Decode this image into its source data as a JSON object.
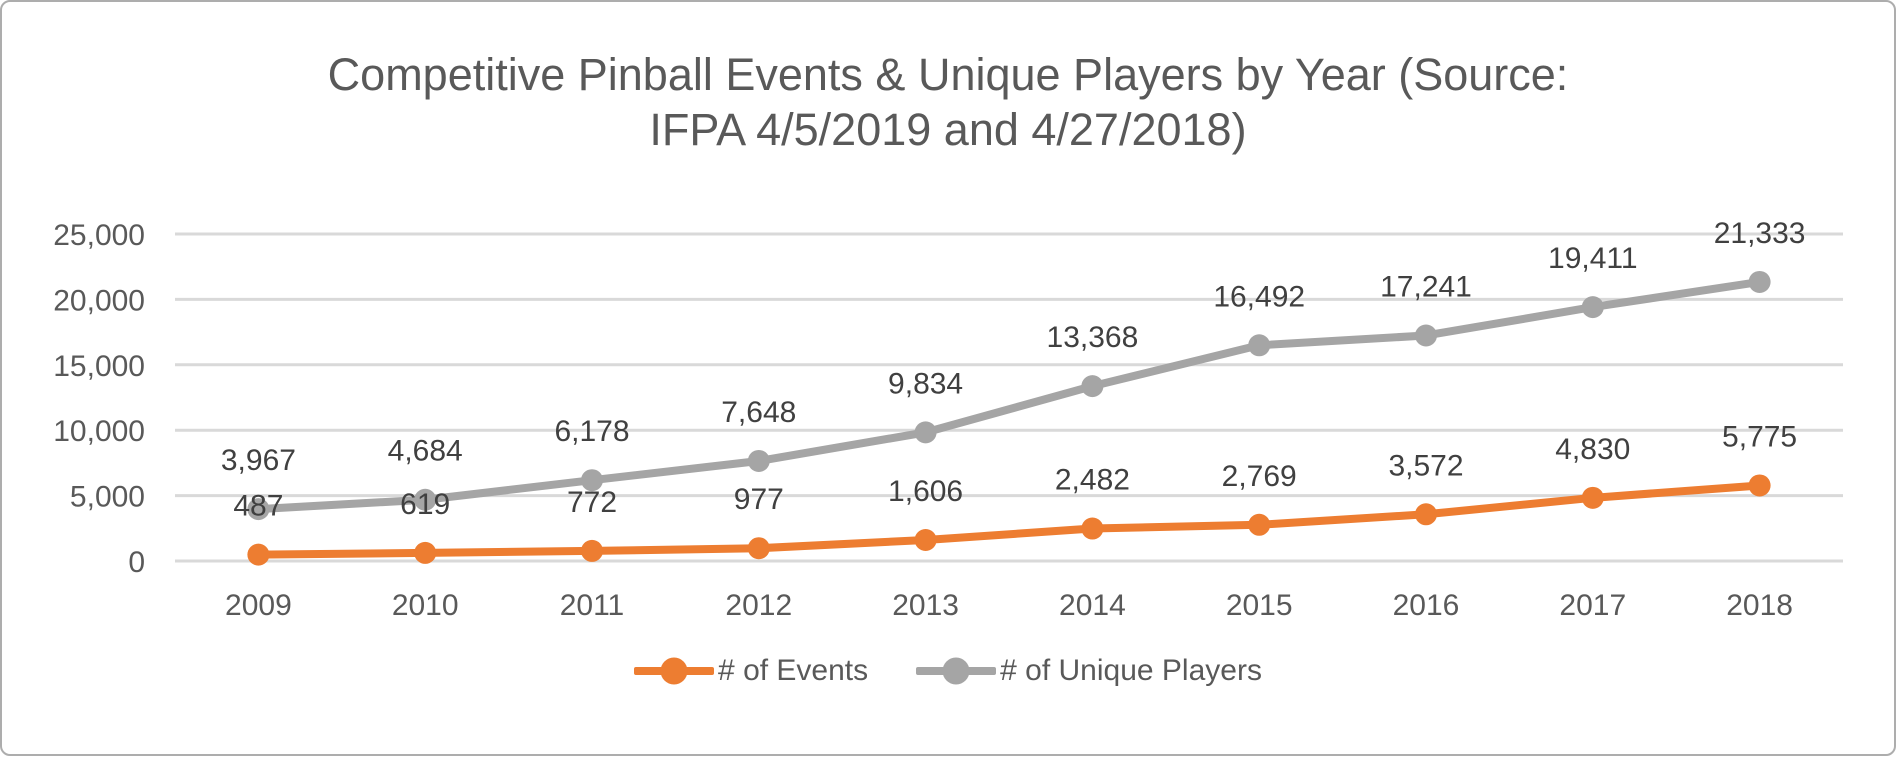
{
  "chart_data": {
    "type": "line",
    "title": "Competitive Pinball Events & Unique Players by Year (Source: IFPA 4/5/2019 and 4/27/2018)",
    "title_lines": [
      "Competitive Pinball Events & Unique Players by Year (Source:",
      "IFPA 4/5/2019 and 4/27/2018)"
    ],
    "categories": [
      "2009",
      "2010",
      "2011",
      "2012",
      "2013",
      "2014",
      "2015",
      "2016",
      "2017",
      "2018"
    ],
    "series": [
      {
        "name": "# of Events",
        "color": "#ED7D31",
        "values": [
          487,
          619,
          772,
          977,
          1606,
          2482,
          2769,
          3572,
          4830,
          5775
        ],
        "data_labels": [
          "487",
          "619",
          "772",
          "977",
          "1,606",
          "2,482",
          "2,769",
          "3,572",
          "4,830",
          "5,775"
        ]
      },
      {
        "name": "# of Unique Players",
        "color": "#A5A5A5",
        "values": [
          3967,
          4684,
          6178,
          7648,
          9834,
          13368,
          16492,
          17241,
          19411,
          21333
        ],
        "data_labels": [
          "3,967",
          "4,684",
          "6,178",
          "7,648",
          "9,834",
          "13,368",
          "16,492",
          "17,241",
          "19,411",
          "21,333"
        ]
      }
    ],
    "ylim": [
      0,
      25000
    ],
    "y_tick_step": 5000,
    "y_tick_labels": [
      "0",
      "5,000",
      "10,000",
      "15,000",
      "20,000",
      "25,000"
    ],
    "grid": true,
    "gridline_color": "#d9d9d9",
    "legend_position": "bottom",
    "data_labels_shown": true,
    "xlabel": "",
    "ylabel": ""
  }
}
